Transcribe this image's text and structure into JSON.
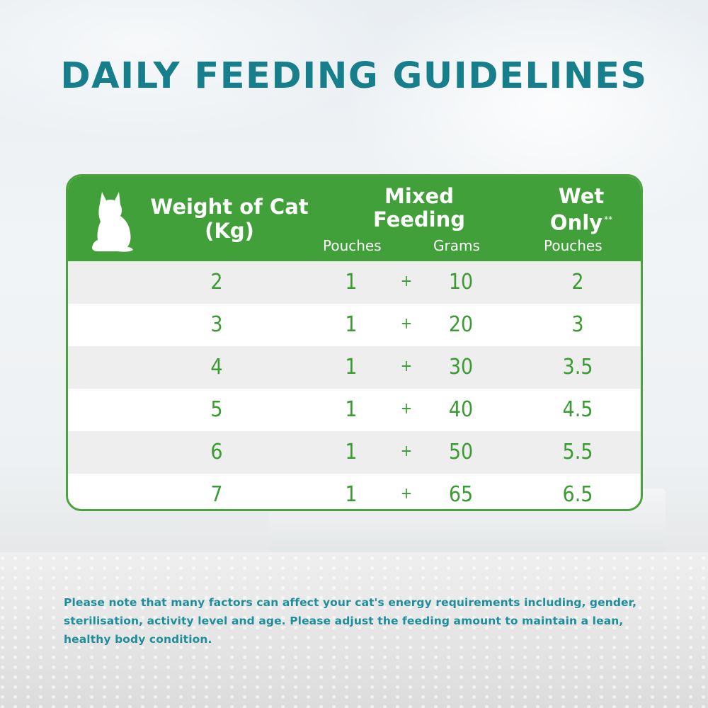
{
  "title": "DAILY FEEDING GUIDELINES",
  "table": {
    "header": {
      "weight_line1": "Weight of Cat",
      "weight_line2": "(Kg)",
      "mixed_line1": "Mixed",
      "mixed_line2": "Feeding",
      "wet_line1": "Wet",
      "wet_line2": "Only",
      "wet_marker": "**",
      "sub_pouches": "Pouches",
      "sub_grams": "Grams",
      "sub_wet_pouches": "Pouches"
    },
    "rows": [
      {
        "weight": "2",
        "pouches": "1",
        "plus": "+",
        "grams": "10",
        "wet": "2"
      },
      {
        "weight": "3",
        "pouches": "1",
        "plus": "+",
        "grams": "20",
        "wet": "3"
      },
      {
        "weight": "4",
        "pouches": "1",
        "plus": "+",
        "grams": "30",
        "wet": "3.5"
      },
      {
        "weight": "5",
        "pouches": "1",
        "plus": "+",
        "grams": "40",
        "wet": "4.5"
      },
      {
        "weight": "6",
        "pouches": "1",
        "plus": "+",
        "grams": "50",
        "wet": "5.5"
      },
      {
        "weight": "7",
        "pouches": "1",
        "plus": "+",
        "grams": "65",
        "wet": "6.5"
      }
    ]
  },
  "note": "Please note that many factors can affect your cat's energy requirements including, gender, sterilisation, activity level and age. Please adjust the feeding amount to maintain a lean, healthy body condition.",
  "colors": {
    "title": "#177f8c",
    "header_green": "#42a03a",
    "value_green": "#3b9b33",
    "note_teal": "#1f8e9a"
  },
  "icons": {
    "header": "cat-silhouette-icon"
  }
}
